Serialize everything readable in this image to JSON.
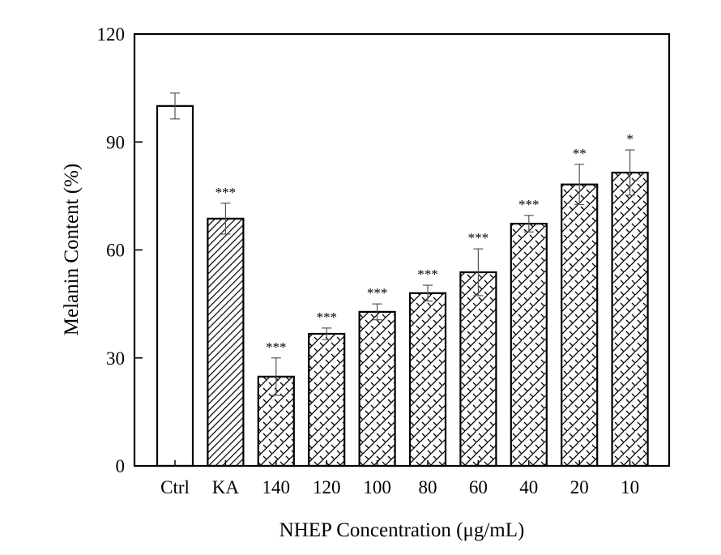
{
  "chart_data": {
    "type": "bar",
    "title": "",
    "xlabel": "NHEP Concentration (μg/mL)",
    "ylabel": "Melanin Content (%)",
    "ylim": [
      0,
      120
    ],
    "yticks": [
      0,
      30,
      60,
      90,
      120
    ],
    "ytick_labels": [
      "0",
      "30",
      "60",
      "90",
      "120"
    ],
    "grid": false,
    "legend": "none",
    "categories": [
      "Ctrl",
      "KA",
      "140",
      "120",
      "100",
      "80",
      "60",
      "40",
      "20",
      "10"
    ],
    "values": [
      100.0,
      68.7,
      24.8,
      36.7,
      42.8,
      48.0,
      53.8,
      67.3,
      78.2,
      81.5
    ],
    "errors": [
      3.6,
      4.3,
      5.2,
      1.6,
      2.2,
      2.2,
      6.5,
      2.3,
      5.6,
      6.3
    ],
    "significance": [
      "",
      "***",
      "***",
      "***",
      "***",
      "***",
      "***",
      "***",
      "**",
      "*"
    ],
    "fill_patterns": [
      "none",
      "diagonal-hatch",
      "lattice",
      "lattice",
      "lattice",
      "lattice",
      "lattice",
      "lattice",
      "lattice",
      "lattice"
    ],
    "colors": {
      "bar_edge": "#000000",
      "bar_fill": "#ffffff",
      "error_bar": "#555555",
      "axis": "#000000"
    }
  }
}
